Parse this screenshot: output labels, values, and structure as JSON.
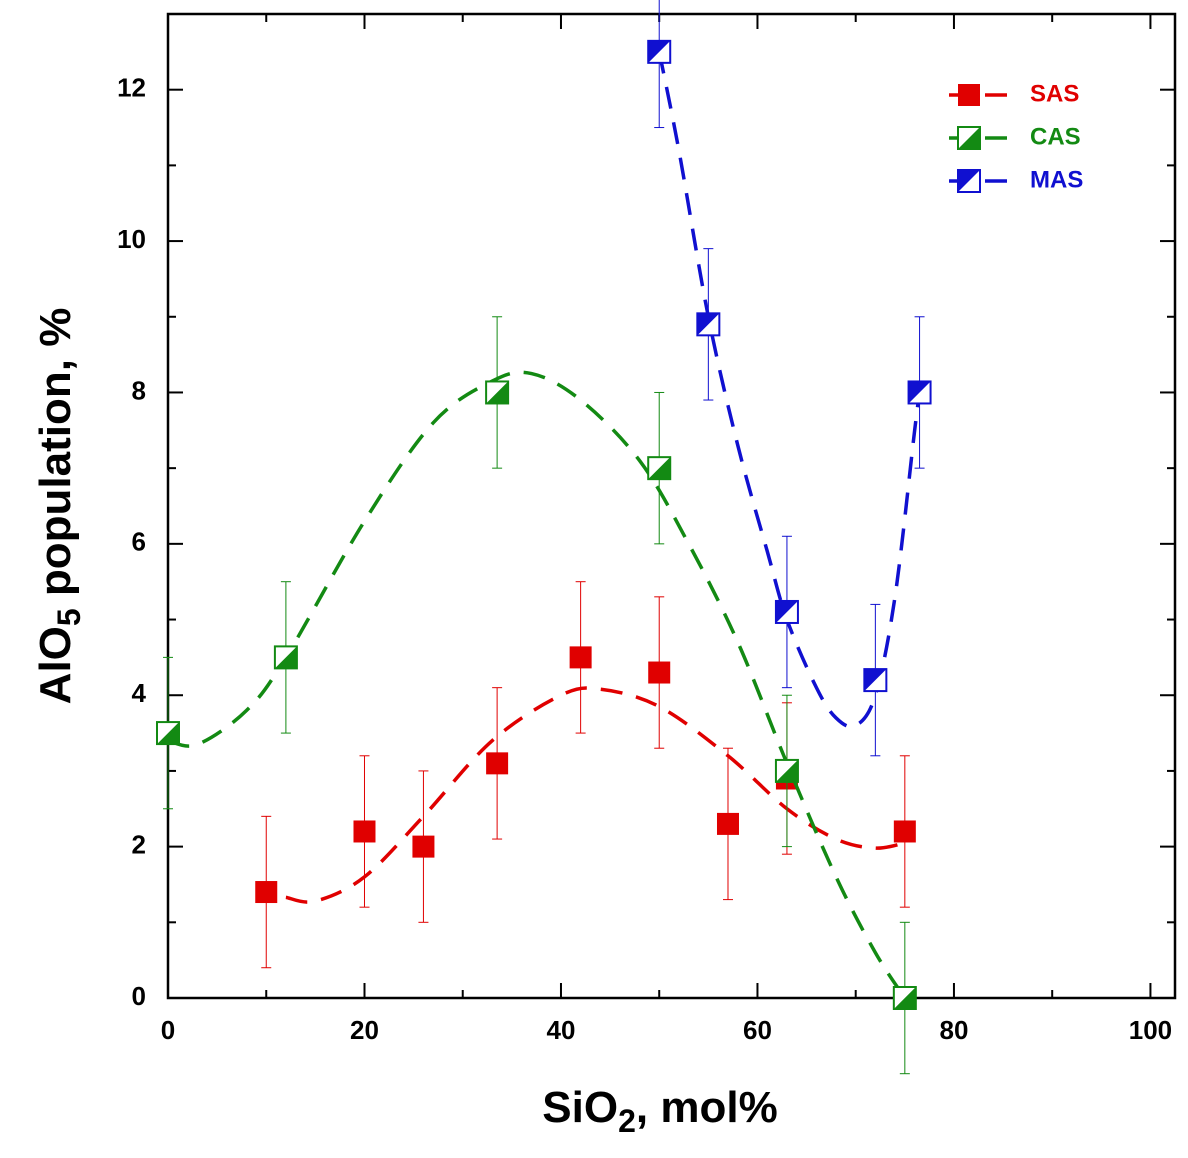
{
  "chart_data": {
    "type": "scatter",
    "x_label": [
      "SiO",
      "2",
      ", mol%"
    ],
    "y_label": [
      "AlO",
      "5",
      " population, %"
    ],
    "xlim": [
      0,
      102.5
    ],
    "ylim": [
      0,
      13
    ],
    "xticks": [
      0,
      20,
      40,
      60,
      80,
      100
    ],
    "yticks": [
      0,
      2,
      4,
      6,
      8,
      10,
      12
    ],
    "xminorticks": [
      10,
      30,
      50,
      70,
      90
    ],
    "yminorticks": [
      1,
      3,
      5,
      7,
      9,
      11,
      13
    ],
    "legend": "upper right",
    "series": [
      {
        "name": "SAS",
        "color": "#e00000",
        "marker": "filled",
        "x": [
          10,
          20,
          26,
          33.5,
          42,
          50,
          57,
          63,
          75
        ],
        "values": [
          1.4,
          2.2,
          2.0,
          3.1,
          4.5,
          4.3,
          2.3,
          2.9,
          2.2
        ],
        "errors": [
          1,
          1,
          1,
          1,
          1,
          1,
          1,
          1,
          1
        ],
        "fit": {
          "x": [
            12,
            15,
            20,
            26,
            33,
            40,
            44,
            50,
            57,
            63,
            68,
            72,
            75
          ],
          "y": [
            1.33,
            1.28,
            1.6,
            2.4,
            3.4,
            4.0,
            4.08,
            3.85,
            3.2,
            2.5,
            2.1,
            1.98,
            2.05
          ]
        }
      },
      {
        "name": "CAS",
        "color": "#138a13",
        "marker": "half-lower-right",
        "x": [
          0,
          12,
          33.5,
          50,
          63,
          75
        ],
        "values": [
          3.5,
          4.5,
          8.0,
          7.0,
          3.0,
          0.0
        ],
        "errors": [
          1,
          1,
          1,
          1,
          1,
          1
        ],
        "fit": {
          "x": [
            0,
            3,
            8,
            12,
            20,
            27,
            33,
            37,
            42,
            48,
            53,
            58,
            63,
            68,
            72,
            75
          ],
          "y": [
            3.4,
            3.35,
            3.8,
            4.5,
            6.3,
            7.6,
            8.15,
            8.25,
            7.9,
            7.1,
            6.0,
            4.7,
            3.1,
            1.6,
            0.6,
            0.0
          ]
        }
      },
      {
        "name": "MAS",
        "color": "#1010d0",
        "marker": "half-upper-left",
        "x": [
          50,
          55,
          63,
          72,
          76.5
        ],
        "values": [
          12.5,
          8.9,
          5.1,
          4.2,
          8.0
        ],
        "errors": [
          1,
          1,
          1,
          1,
          1
        ],
        "fit": {
          "x": [
            50,
            52,
            55,
            58,
            61,
            63,
            66,
            68,
            70,
            72,
            74,
            76,
            76.5
          ],
          "y": [
            12.5,
            11.2,
            9.0,
            7.3,
            5.9,
            5.0,
            4.1,
            3.7,
            3.6,
            4.0,
            5.3,
            7.5,
            8.0
          ]
        }
      }
    ]
  }
}
